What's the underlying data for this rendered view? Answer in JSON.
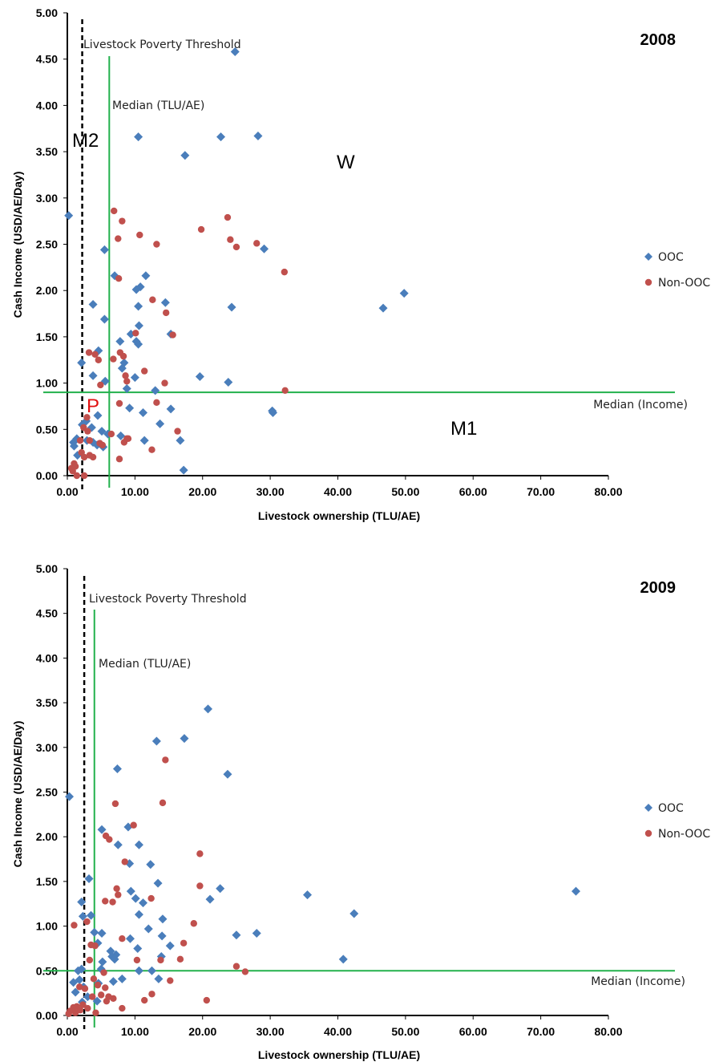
{
  "colors": {
    "ooc": "#4a7ebb",
    "non_ooc": "#c0504d",
    "median": "#22b14c",
    "threshold": "#000000"
  },
  "chart_data": [
    {
      "type": "scatter",
      "year_label": "2008",
      "xlabel": "Livestock ownership (TLU/AE)",
      "ylabel": "Cash Income (USD/AE/Day)",
      "xlim": [
        0,
        80
      ],
      "ylim": [
        0,
        5
      ],
      "xticks": [
        "0.00",
        "10.00",
        "20.00",
        "30.00",
        "40.00",
        "50.00",
        "60.00",
        "70.00",
        "80.00"
      ],
      "yticks": [
        "0.00",
        "0.50",
        "1.00",
        "1.50",
        "2.00",
        "2.50",
        "3.00",
        "3.50",
        "4.00",
        "4.50",
        "5.00"
      ],
      "legend": [
        "OOC",
        "Non-OOC"
      ],
      "legend_position": "right",
      "reference_lines": {
        "livestock_poverty_threshold": {
          "x": 2.2,
          "label": "Livestock Poverty Threshold"
        },
        "median_tlu": {
          "x": 6.2,
          "label": "Median (TLU/AE)"
        },
        "median_income": {
          "y": 0.9,
          "label": "Median (Income)"
        }
      },
      "quadrant_labels": {
        "m2": "M2",
        "w": "W",
        "p": "P",
        "m1": "M1"
      },
      "series": [
        {
          "name": "OOC",
          "marker": "diamond",
          "points": [
            [
              0.2,
              2.81
            ],
            [
              24.8,
              4.58
            ],
            [
              10.5,
              3.66
            ],
            [
              22.7,
              3.66
            ],
            [
              28.2,
              3.67
            ],
            [
              17.4,
              3.46
            ],
            [
              5.5,
              2.44
            ],
            [
              29.1,
              2.45
            ],
            [
              7.0,
              2.16
            ],
            [
              11.6,
              2.16
            ],
            [
              10.8,
              2.04
            ],
            [
              10.2,
              2.01
            ],
            [
              3.8,
              1.85
            ],
            [
              10.5,
              1.83
            ],
            [
              14.5,
              1.87
            ],
            [
              24.3,
              1.82
            ],
            [
              46.7,
              1.81
            ],
            [
              49.8,
              1.97
            ],
            [
              5.5,
              1.69
            ],
            [
              10.6,
              1.62
            ],
            [
              9.4,
              1.53
            ],
            [
              15.3,
              1.53
            ],
            [
              10.2,
              1.45
            ],
            [
              10.5,
              1.42
            ],
            [
              7.8,
              1.45
            ],
            [
              4.6,
              1.35
            ],
            [
              2.1,
              1.22
            ],
            [
              8.4,
              1.22
            ],
            [
              8.1,
              1.16
            ],
            [
              10.0,
              1.06
            ],
            [
              3.8,
              1.08
            ],
            [
              5.6,
              1.02
            ],
            [
              19.6,
              1.07
            ],
            [
              23.8,
              1.01
            ],
            [
              8.8,
              0.94
            ],
            [
              11.2,
              0.68
            ],
            [
              9.2,
              0.73
            ],
            [
              15.3,
              0.72
            ],
            [
              30.3,
              0.7
            ],
            [
              30.4,
              0.68
            ],
            [
              13.7,
              0.56
            ],
            [
              4.5,
              0.65
            ],
            [
              2.8,
              0.59
            ],
            [
              2.2,
              0.55
            ],
            [
              3.6,
              0.52
            ],
            [
              5.1,
              0.48
            ],
            [
              6.0,
              0.45
            ],
            [
              7.9,
              0.43
            ],
            [
              1.4,
              0.4
            ],
            [
              0.9,
              0.36
            ],
            [
              2.9,
              0.38
            ],
            [
              3.8,
              0.36
            ],
            [
              4.4,
              0.33
            ],
            [
              5.3,
              0.31
            ],
            [
              11.4,
              0.38
            ],
            [
              16.7,
              0.38
            ],
            [
              17.2,
              0.06
            ],
            [
              13.0,
              0.92
            ],
            [
              1.5,
              0.22
            ],
            [
              1.0,
              0.32
            ]
          ]
        },
        {
          "name": "Non-OOC",
          "marker": "circle",
          "points": [
            [
              6.9,
              2.86
            ],
            [
              8.1,
              2.75
            ],
            [
              23.7,
              2.79
            ],
            [
              19.8,
              2.66
            ],
            [
              24.1,
              2.55
            ],
            [
              7.5,
              2.56
            ],
            [
              10.7,
              2.6
            ],
            [
              13.2,
              2.5
            ],
            [
              25.0,
              2.47
            ],
            [
              28.0,
              2.51
            ],
            [
              32.1,
              2.2
            ],
            [
              7.6,
              2.13
            ],
            [
              12.6,
              1.9
            ],
            [
              14.6,
              1.76
            ],
            [
              10.1,
              1.54
            ],
            [
              15.6,
              1.52
            ],
            [
              3.2,
              1.33
            ],
            [
              4.1,
              1.31
            ],
            [
              7.8,
              1.33
            ],
            [
              8.3,
              1.29
            ],
            [
              4.6,
              1.25
            ],
            [
              6.8,
              1.26
            ],
            [
              11.4,
              1.13
            ],
            [
              8.6,
              1.08
            ],
            [
              8.8,
              1.02
            ],
            [
              14.4,
              1.0
            ],
            [
              4.9,
              0.98
            ],
            [
              7.7,
              0.78
            ],
            [
              13.2,
              0.79
            ],
            [
              32.2,
              0.92
            ],
            [
              2.4,
              0.52
            ],
            [
              3.0,
              0.48
            ],
            [
              1.9,
              0.38
            ],
            [
              3.3,
              0.38
            ],
            [
              4.8,
              0.35
            ],
            [
              5.2,
              0.33
            ],
            [
              8.4,
              0.36
            ],
            [
              8.8,
              0.4
            ],
            [
              12.5,
              0.28
            ],
            [
              16.3,
              0.48
            ],
            [
              7.7,
              0.18
            ],
            [
              2.5,
              0.2
            ],
            [
              3.3,
              0.22
            ],
            [
              3.8,
              0.2
            ],
            [
              1.0,
              0.13
            ],
            [
              1.2,
              0.1
            ],
            [
              0.8,
              0.05
            ],
            [
              1.4,
              0.0
            ],
            [
              2.5,
              0.0
            ],
            [
              0.6,
              0.08
            ],
            [
              2.1,
              0.25
            ],
            [
              6.5,
              0.45
            ],
            [
              2.9,
              0.63
            ],
            [
              9.0,
              0.4
            ]
          ]
        }
      ]
    },
    {
      "type": "scatter",
      "year_label": "2009",
      "xlabel": "Livestock ownership (TLU/AE)",
      "ylabel": "Cash Income (USD/AE/Day)",
      "xlim": [
        0,
        80
      ],
      "ylim": [
        0,
        5
      ],
      "xticks": [
        "0.00",
        "10.00",
        "20.00",
        "30.00",
        "40.00",
        "50.00",
        "60.00",
        "70.00",
        "80.00"
      ],
      "yticks": [
        "0.00",
        "0.50",
        "1.00",
        "1.50",
        "2.00",
        "2.50",
        "3.00",
        "3.50",
        "4.00",
        "4.50",
        "5.00"
      ],
      "legend": [
        "OOC",
        "Non-OOC"
      ],
      "legend_position": "right",
      "reference_lines": {
        "livestock_poverty_threshold": {
          "x": 2.5,
          "label": "Livestock Poverty Threshold"
        },
        "median_tlu": {
          "x": 4.0,
          "label": "Median (TLU/AE)"
        },
        "median_income": {
          "y": 0.5,
          "label": "Median (Income)"
        }
      },
      "series": [
        {
          "name": "OOC",
          "marker": "diamond",
          "points": [
            [
              0.3,
              2.45
            ],
            [
              20.8,
              3.43
            ],
            [
              13.2,
              3.07
            ],
            [
              17.3,
              3.1
            ],
            [
              7.4,
              2.76
            ],
            [
              23.7,
              2.7
            ],
            [
              5.1,
              2.08
            ],
            [
              9.0,
              2.11
            ],
            [
              7.5,
              1.91
            ],
            [
              10.6,
              1.91
            ],
            [
              9.2,
              1.7
            ],
            [
              12.3,
              1.69
            ],
            [
              3.2,
              1.53
            ],
            [
              13.4,
              1.48
            ],
            [
              22.6,
              1.42
            ],
            [
              9.4,
              1.39
            ],
            [
              10.1,
              1.31
            ],
            [
              11.2,
              1.26
            ],
            [
              21.1,
              1.3
            ],
            [
              35.5,
              1.35
            ],
            [
              42.4,
              1.14
            ],
            [
              75.2,
              1.39
            ],
            [
              2.1,
              1.27
            ],
            [
              2.3,
              1.11
            ],
            [
              3.5,
              1.12
            ],
            [
              10.6,
              1.13
            ],
            [
              14.1,
              1.08
            ],
            [
              12.0,
              0.97
            ],
            [
              9.3,
              0.86
            ],
            [
              25.0,
              0.9
            ],
            [
              28.0,
              0.92
            ],
            [
              14.0,
              0.89
            ],
            [
              4.0,
              0.93
            ],
            [
              5.1,
              0.92
            ],
            [
              4.5,
              0.81
            ],
            [
              10.4,
              0.75
            ],
            [
              15.2,
              0.78
            ],
            [
              6.4,
              0.72
            ],
            [
              7.2,
              0.68
            ],
            [
              6.6,
              0.66
            ],
            [
              7.0,
              0.63
            ],
            [
              40.8,
              0.63
            ],
            [
              13.9,
              0.66
            ],
            [
              5.2,
              0.6
            ],
            [
              5.0,
              0.52
            ],
            [
              10.6,
              0.5
            ],
            [
              12.5,
              0.5
            ],
            [
              2.1,
              0.52
            ],
            [
              1.6,
              0.5
            ],
            [
              0.9,
              0.37
            ],
            [
              1.8,
              0.4
            ],
            [
              2.4,
              0.32
            ],
            [
              4.6,
              0.36
            ],
            [
              6.8,
              0.38
            ],
            [
              8.1,
              0.41
            ],
            [
              13.5,
              0.41
            ],
            [
              1.2,
              0.26
            ],
            [
              2.2,
              0.15
            ],
            [
              4.4,
              0.16
            ],
            [
              3.0,
              0.21
            ]
          ]
        },
        {
          "name": "Non-OOC",
          "marker": "circle",
          "points": [
            [
              14.5,
              2.86
            ],
            [
              7.1,
              2.37
            ],
            [
              14.1,
              2.38
            ],
            [
              9.8,
              2.13
            ],
            [
              5.7,
              2.01
            ],
            [
              6.2,
              1.97
            ],
            [
              19.6,
              1.81
            ],
            [
              8.5,
              1.72
            ],
            [
              19.6,
              1.45
            ],
            [
              7.3,
              1.42
            ],
            [
              7.5,
              1.35
            ],
            [
              12.4,
              1.31
            ],
            [
              5.6,
              1.28
            ],
            [
              6.7,
              1.27
            ],
            [
              1.0,
              1.01
            ],
            [
              2.9,
              1.05
            ],
            [
              18.7,
              1.03
            ],
            [
              8.1,
              0.86
            ],
            [
              17.2,
              0.81
            ],
            [
              3.5,
              0.79
            ],
            [
              4.1,
              0.78
            ],
            [
              13.8,
              0.62
            ],
            [
              16.7,
              0.63
            ],
            [
              10.3,
              0.62
            ],
            [
              25.0,
              0.55
            ],
            [
              26.3,
              0.49
            ],
            [
              5.4,
              0.48
            ],
            [
              3.9,
              0.41
            ],
            [
              4.5,
              0.34
            ],
            [
              5.6,
              0.31
            ],
            [
              3.7,
              0.21
            ],
            [
              5.0,
              0.23
            ],
            [
              6.1,
              0.21
            ],
            [
              6.8,
              0.19
            ],
            [
              15.2,
              0.39
            ],
            [
              11.4,
              0.17
            ],
            [
              12.5,
              0.24
            ],
            [
              20.6,
              0.17
            ],
            [
              5.8,
              0.16
            ],
            [
              8.1,
              0.08
            ],
            [
              2.3,
              0.12
            ],
            [
              3.0,
              0.08
            ],
            [
              0.9,
              0.09
            ],
            [
              1.4,
              0.1
            ],
            [
              0.4,
              0.05
            ],
            [
              1.9,
              0.06
            ],
            [
              0.2,
              0.02
            ],
            [
              1.2,
              0.03
            ],
            [
              4.2,
              0.03
            ],
            [
              2.6,
              0.3
            ],
            [
              3.3,
              0.62
            ],
            [
              1.8,
              0.32
            ]
          ]
        }
      ]
    }
  ]
}
